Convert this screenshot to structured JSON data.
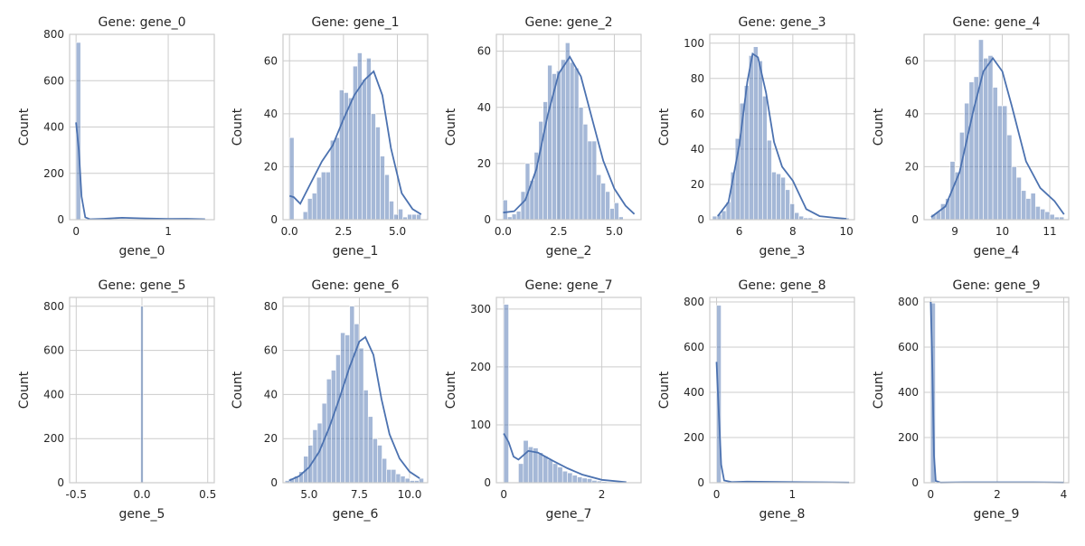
{
  "chart_data": [
    {
      "type": "bar",
      "title": "Gene: gene_0",
      "xlabel": "gene_0",
      "ylabel": "Count",
      "xlim": [
        -0.07,
        1.5
      ],
      "ylim": [
        0,
        800
      ],
      "xticks": [
        0,
        1
      ],
      "yticks": [
        0,
        200,
        400,
        600,
        800
      ],
      "grid": true,
      "bins": {
        "start": 0,
        "width": 0.05,
        "counts": [
          765,
          3,
          2,
          2,
          2,
          3,
          2,
          2,
          2,
          2,
          2,
          2,
          2,
          1,
          1,
          1,
          1,
          1,
          1,
          1,
          1,
          1,
          1,
          1,
          1,
          1,
          1,
          1
        ]
      },
      "kde": {
        "x": [
          0,
          0.03,
          0.06,
          0.1,
          0.15,
          0.3,
          0.5,
          0.7,
          1.0,
          1.2,
          1.4
        ],
        "y": [
          420,
          300,
          100,
          10,
          2,
          4,
          8,
          6,
          3,
          4,
          2
        ]
      }
    },
    {
      "type": "bar",
      "title": "Gene: gene_1",
      "xlabel": "gene_1",
      "ylabel": "Count",
      "xlim": [
        -0.3,
        6.4
      ],
      "ylim": [
        0,
        70
      ],
      "xticks": [
        0.0,
        2.5,
        5.0
      ],
      "yticks": [
        0,
        20,
        40,
        60
      ],
      "grid": true,
      "bins": {
        "start": 0,
        "width": 0.21,
        "counts": [
          31,
          0,
          0,
          3,
          8,
          10,
          16,
          18,
          18,
          30,
          31,
          49,
          48,
          46,
          58,
          63,
          53,
          61,
          40,
          35,
          24,
          17,
          7,
          2,
          4,
          1,
          2,
          2,
          2
        ]
      },
      "kde": {
        "x": [
          0,
          0.2,
          0.5,
          1,
          1.5,
          2,
          2.5,
          3,
          3.5,
          3.9,
          4.3,
          4.7,
          5.2,
          5.7,
          6.1
        ],
        "y": [
          9,
          8.5,
          6,
          14,
          22,
          28,
          38,
          47,
          53,
          56,
          47,
          27,
          10,
          4,
          2
        ]
      }
    },
    {
      "type": "bar",
      "title": "Gene: gene_2",
      "xlabel": "gene_2",
      "ylabel": "Count",
      "xlim": [
        -0.3,
        6.2
      ],
      "ylim": [
        0,
        66
      ],
      "xticks": [
        0.0,
        2.5,
        5.0
      ],
      "yticks": [
        0,
        20,
        40,
        60
      ],
      "grid": true,
      "bins": {
        "start": 0,
        "width": 0.2,
        "counts": [
          7,
          1,
          2,
          3,
          10,
          20,
          14,
          24,
          35,
          42,
          55,
          52,
          53,
          57,
          63,
          56,
          54,
          40,
          34,
          28,
          28,
          16,
          13,
          10,
          4,
          6,
          1,
          0,
          0
        ]
      },
      "kde": {
        "x": [
          0,
          0.5,
          1,
          1.5,
          2,
          2.5,
          3,
          3.5,
          4,
          4.5,
          5,
          5.5,
          5.9
        ],
        "y": [
          2.5,
          3,
          7,
          18,
          37,
          52,
          58,
          51,
          36,
          21,
          11,
          5,
          2
        ]
      }
    },
    {
      "type": "bar",
      "title": "Gene: gene_3",
      "xlabel": "gene_3",
      "ylabel": "Count",
      "xlim": [
        4.9,
        10.3
      ],
      "ylim": [
        0,
        105
      ],
      "xticks": [
        6,
        8,
        10
      ],
      "yticks": [
        0,
        20,
        40,
        60,
        80,
        100
      ],
      "grid": true,
      "bins": {
        "start": 5.0,
        "width": 0.17,
        "counts": [
          2,
          3,
          5,
          10,
          27,
          46,
          66,
          76,
          93,
          98,
          90,
          70,
          45,
          27,
          26,
          24,
          17,
          9,
          4,
          2,
          1,
          1,
          0,
          0,
          0,
          0,
          0,
          0,
          0,
          1
        ]
      },
      "kde": {
        "x": [
          5.2,
          5.6,
          6,
          6.3,
          6.5,
          6.7,
          7,
          7.3,
          7.6,
          8,
          8.5,
          9,
          9.6,
          10
        ],
        "y": [
          2,
          10,
          42,
          78,
          94,
          92,
          72,
          44,
          30,
          22,
          6,
          2,
          1,
          0.5
        ]
      }
    },
    {
      "type": "bar",
      "title": "Gene: gene_4",
      "xlabel": "gene_4",
      "ylabel": "Count",
      "xlim": [
        8.35,
        11.4
      ],
      "ylim": [
        0,
        70
      ],
      "xticks": [
        9,
        10,
        11
      ],
      "yticks": [
        0,
        20,
        40,
        60
      ],
      "grid": true,
      "bins": {
        "start": 8.5,
        "width": 0.1,
        "counts": [
          2,
          3,
          6,
          8,
          22,
          18,
          33,
          44,
          52,
          54,
          68,
          61,
          62,
          50,
          43,
          43,
          32,
          20,
          16,
          11,
          8,
          10,
          5,
          4,
          3,
          2,
          1,
          1,
          0,
          0
        ]
      },
      "kde": {
        "x": [
          8.5,
          8.8,
          9.1,
          9.4,
          9.6,
          9.8,
          10,
          10.2,
          10.5,
          10.8,
          11.1,
          11.3
        ],
        "y": [
          1,
          5,
          18,
          42,
          56,
          61,
          56,
          43,
          22,
          12,
          7,
          2
        ]
      }
    },
    {
      "type": "bar",
      "title": "Gene: gene_5",
      "xlabel": "gene_5",
      "ylabel": "Count",
      "xlim": [
        -0.55,
        0.55
      ],
      "ylim": [
        0,
        840
      ],
      "xticks": [
        -0.5,
        0.0,
        0.5
      ],
      "yticks": [
        0,
        200,
        400,
        600,
        800
      ],
      "grid": true,
      "bins": {
        "start": -0.01,
        "width": 0.02,
        "counts": [
          800
        ]
      },
      "kde": {
        "x": [],
        "y": []
      }
    },
    {
      "type": "bar",
      "title": "Gene: gene_6",
      "xlabel": "gene_6",
      "ylabel": "Count",
      "xlim": [
        3.7,
        10.9
      ],
      "ylim": [
        0,
        84
      ],
      "xticks": [
        5.0,
        7.5,
        10.0
      ],
      "yticks": [
        0,
        20,
        40,
        60,
        80
      ],
      "grid": true,
      "bins": {
        "start": 3.8,
        "width": 0.23,
        "counts": [
          1,
          2,
          3,
          5,
          12,
          17,
          24,
          27,
          36,
          47,
          51,
          58,
          68,
          67,
          80,
          72,
          61,
          42,
          30,
          20,
          17,
          11,
          6,
          6,
          4,
          3,
          2,
          1,
          1,
          2
        ]
      },
      "kde": {
        "x": [
          4,
          4.5,
          5,
          5.5,
          6,
          6.5,
          7,
          7.5,
          7.8,
          8.2,
          8.6,
          9,
          9.5,
          10,
          10.5
        ],
        "y": [
          1,
          3,
          7,
          14,
          25,
          38,
          52,
          64,
          66,
          58,
          38,
          22,
          11,
          5,
          2
        ]
      }
    },
    {
      "type": "bar",
      "title": "Gene: gene_7",
      "xlabel": "gene_7",
      "ylabel": "Count",
      "xlim": [
        -0.15,
        2.8
      ],
      "ylim": [
        0,
        320
      ],
      "xticks": [
        0,
        2
      ],
      "yticks": [
        0,
        100,
        200,
        300
      ],
      "grid": true,
      "bins": {
        "start": 0,
        "width": 0.1,
        "counts": [
          308,
          0,
          0,
          33,
          73,
          62,
          60,
          52,
          46,
          40,
          33,
          27,
          20,
          17,
          13,
          10,
          8,
          7,
          4,
          3,
          2,
          1,
          1,
          1,
          1,
          0,
          0
        ]
      },
      "kde": {
        "x": [
          0,
          0.1,
          0.2,
          0.3,
          0.5,
          0.7,
          1.0,
          1.3,
          1.6,
          2.0,
          2.5
        ],
        "y": [
          85,
          70,
          45,
          40,
          55,
          52,
          38,
          25,
          14,
          5,
          1
        ]
      }
    },
    {
      "type": "bar",
      "title": "Gene: gene_8",
      "xlabel": "gene_8",
      "ylabel": "Count",
      "xlim": [
        -0.09,
        1.82
      ],
      "ylim": [
        0,
        820
      ],
      "xticks": [
        0,
        1
      ],
      "yticks": [
        0,
        200,
        400,
        600,
        800
      ],
      "grid": true,
      "bins": {
        "start": 0,
        "width": 0.06,
        "counts": [
          785,
          3,
          2,
          2,
          2,
          2,
          1,
          2,
          1,
          1,
          1,
          1,
          1,
          1,
          1,
          1,
          1,
          1,
          1,
          1,
          1,
          1,
          1,
          1,
          1,
          1,
          1,
          1,
          1,
          1
        ]
      },
      "kde": {
        "x": [
          0,
          0.03,
          0.06,
          0.1,
          0.2,
          0.4,
          0.7,
          1.0,
          1.4,
          1.75
        ],
        "y": [
          535,
          300,
          80,
          10,
          3,
          5,
          4,
          3,
          2,
          1
        ]
      }
    },
    {
      "type": "bar",
      "title": "Gene: gene_9",
      "xlabel": "gene_9",
      "ylabel": "Count",
      "xlim": [
        -0.2,
        4.15
      ],
      "ylim": [
        0,
        820
      ],
      "xticks": [
        0,
        2,
        4
      ],
      "yticks": [
        0,
        200,
        400,
        600,
        800
      ],
      "grid": true,
      "bins": {
        "start": 0,
        "width": 0.14,
        "counts": [
          795,
          3,
          1,
          1,
          1,
          0,
          0,
          0,
          1,
          1,
          1,
          0,
          0,
          0,
          1,
          1,
          0,
          0,
          0,
          0,
          1,
          1,
          0,
          0,
          1,
          1,
          1,
          0,
          0,
          1
        ]
      },
      "kde": {
        "x": [
          0,
          0.05,
          0.1,
          0.15,
          0.3,
          1,
          2,
          3,
          4
        ],
        "y": [
          800,
          500,
          120,
          8,
          1,
          2,
          2,
          2,
          1
        ]
      }
    }
  ]
}
